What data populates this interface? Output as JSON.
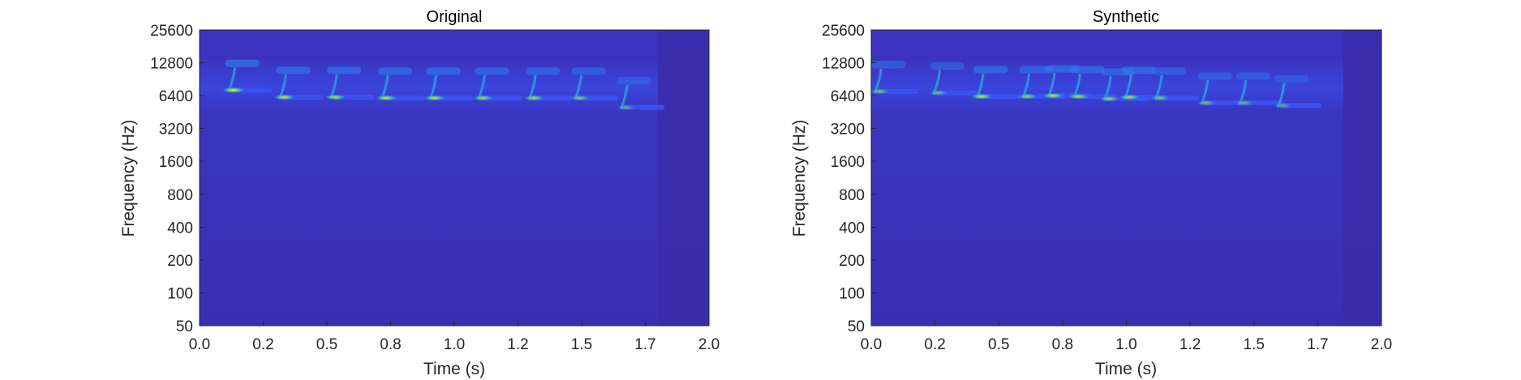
{
  "chart_data": [
    {
      "type": "heatmap",
      "title": "Original",
      "xlabel": "Time (s)",
      "ylabel": "Frequency (Hz)",
      "xlim": [
        0,
        2.0
      ],
      "ylim": [
        50,
        25600
      ],
      "yscale": "log2",
      "x_ticks": [
        0.0,
        0.25,
        0.5,
        0.75,
        1.0,
        1.25,
        1.5,
        1.75,
        2.0
      ],
      "x_tick_labels": [
        "0.0",
        "0.2",
        "0.5",
        "0.8",
        "1.0",
        "1.2",
        "1.5",
        "1.7",
        "2.0"
      ],
      "y_ticks": [
        50,
        100,
        200,
        400,
        800,
        1600,
        3200,
        6400,
        12800,
        25600
      ],
      "y_tick_labels": [
        "50",
        "100",
        "200",
        "400",
        "800",
        "1600",
        "3200",
        "6400",
        "12800",
        "25600"
      ],
      "colormap": [
        "#3d26a8",
        "#3b53f4",
        "#2693e6",
        "#1bc7b4",
        "#a2d54a",
        "#f5c938",
        "#f9fb14"
      ],
      "background_color": "#3d33b8",
      "silence_after_s": 1.8,
      "calls": [
        {
          "t": 0.12,
          "f_hz": 7200,
          "peak": 0.95
        },
        {
          "t": 0.32,
          "f_hz": 6200,
          "peak": 0.85
        },
        {
          "t": 0.52,
          "f_hz": 6200,
          "peak": 0.8
        },
        {
          "t": 0.72,
          "f_hz": 6100,
          "peak": 0.85
        },
        {
          "t": 0.91,
          "f_hz": 6100,
          "peak": 0.85
        },
        {
          "t": 1.1,
          "f_hz": 6100,
          "peak": 0.75
        },
        {
          "t": 1.3,
          "f_hz": 6100,
          "peak": 0.75
        },
        {
          "t": 1.48,
          "f_hz": 6100,
          "peak": 0.6
        },
        {
          "t": 1.66,
          "f_hz": 5000,
          "peak": 0.45
        }
      ]
    },
    {
      "type": "heatmap",
      "title": "Synthetic",
      "xlabel": "Time (s)",
      "ylabel": "Frequency (Hz)",
      "xlim": [
        0,
        2.0
      ],
      "ylim": [
        50,
        25600
      ],
      "yscale": "log2",
      "x_ticks": [
        0.0,
        0.25,
        0.5,
        0.75,
        1.0,
        1.25,
        1.5,
        1.75,
        2.0
      ],
      "x_tick_labels": [
        "0.0",
        "0.2",
        "0.5",
        "0.8",
        "1.0",
        "1.2",
        "1.5",
        "1.7",
        "2.0"
      ],
      "y_ticks": [
        50,
        100,
        200,
        400,
        800,
        1600,
        3200,
        6400,
        12800,
        25600
      ],
      "y_tick_labels": [
        "50",
        "100",
        "200",
        "400",
        "800",
        "1600",
        "3200",
        "6400",
        "12800",
        "25600"
      ],
      "colormap": [
        "#3d26a8",
        "#3b53f4",
        "#2693e6",
        "#1bc7b4",
        "#a2d54a",
        "#f5c938",
        "#f9fb14"
      ],
      "background_color": "#3d33b8",
      "silence_after_s": 1.85,
      "calls": [
        {
          "t": 0.02,
          "f_hz": 7000,
          "peak": 0.6
        },
        {
          "t": 0.25,
          "f_hz": 6800,
          "peak": 0.55
        },
        {
          "t": 0.42,
          "f_hz": 6300,
          "peak": 0.85
        },
        {
          "t": 0.6,
          "f_hz": 6300,
          "peak": 0.7
        },
        {
          "t": 0.7,
          "f_hz": 6400,
          "peak": 0.85
        },
        {
          "t": 0.8,
          "f_hz": 6300,
          "peak": 0.8
        },
        {
          "t": 0.92,
          "f_hz": 6000,
          "peak": 0.7
        },
        {
          "t": 1.0,
          "f_hz": 6200,
          "peak": 0.8
        },
        {
          "t": 1.12,
          "f_hz": 6100,
          "peak": 0.6
        },
        {
          "t": 1.3,
          "f_hz": 5500,
          "peak": 0.55
        },
        {
          "t": 1.45,
          "f_hz": 5500,
          "peak": 0.5
        },
        {
          "t": 1.6,
          "f_hz": 5200,
          "peak": 0.45
        }
      ]
    }
  ]
}
